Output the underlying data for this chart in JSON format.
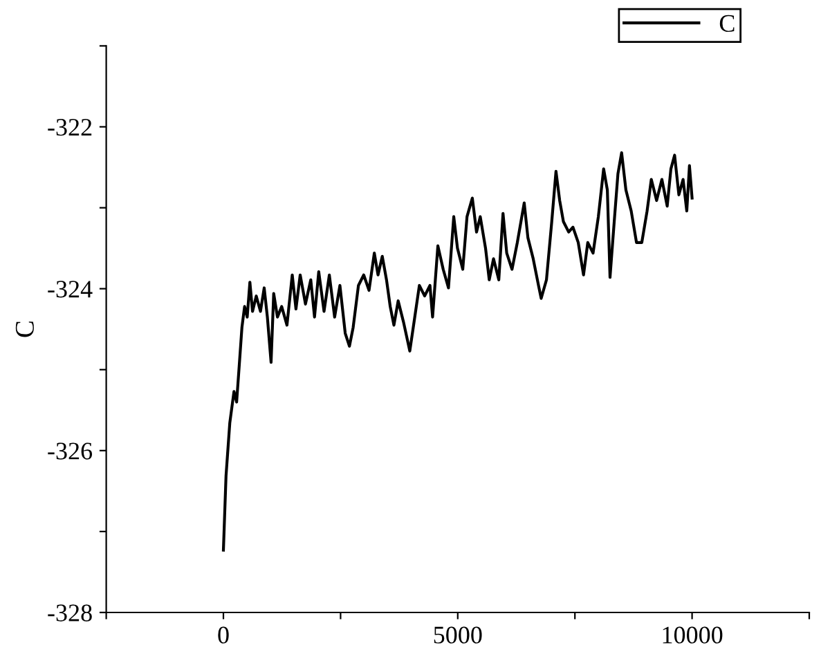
{
  "chart_data": {
    "type": "line",
    "ylabel": "C",
    "legend": "top right",
    "grid": false,
    "marker": "none",
    "line_style": "solid",
    "xlim": [
      -2500,
      12500
    ],
    "xticks": [
      {
        "value": -2500,
        "label": null
      },
      0,
      {
        "value": 2500,
        "label": null
      },
      5000,
      {
        "value": 7500,
        "label": null
      },
      10000,
      {
        "value": 12500,
        "label": null
      }
    ],
    "ylim": [
      -328,
      -321
    ],
    "yticks": [
      -328,
      {
        "value": -327,
        "label": null
      },
      -326,
      {
        "value": -325,
        "label": null
      },
      -324,
      {
        "value": -323,
        "label": null
      },
      -322,
      {
        "value": -321,
        "label": null
      }
    ],
    "series": [
      {
        "name": "C",
        "color": "#000000",
        "x": [
          0,
          56,
          136,
          226,
          282,
          339,
          395,
          452,
          508,
          565,
          621,
          701,
          791,
          870,
          938,
          1017,
          1073,
          1153,
          1243,
          1356,
          1469,
          1548,
          1638,
          1751,
          1864,
          1944,
          2034,
          2147,
          2260,
          2373,
          2486,
          2599,
          2689,
          2768,
          2881,
          2994,
          3107,
          3220,
          3299,
          3390,
          3480,
          3559,
          3638,
          3729,
          3842,
          3977,
          4068,
          4181,
          4294,
          4407,
          4463,
          4576,
          4689,
          4802,
          4915,
          4994,
          5107,
          5198,
          5311,
          5401,
          5480,
          5593,
          5672,
          5763,
          5876,
          5966,
          6045,
          6158,
          6271,
          6418,
          6497,
          6610,
          6723,
          6780,
          6893,
          7006,
          7096,
          7175,
          7254,
          7367,
          7458,
          7571,
          7684,
          7774,
          7887,
          8000,
          8113,
          8192,
          8249,
          8339,
          8418,
          8497,
          8588,
          8701,
          8814,
          8927,
          9040,
          9130,
          9243,
          9356,
          9469,
          9548,
          9627,
          9718,
          9808,
          9887,
          9944,
          10000
        ],
        "values": [
          -327.23,
          -326.31,
          -325.66,
          -325.27,
          -325.4,
          -324.94,
          -324.48,
          -324.22,
          -324.35,
          -323.92,
          -324.28,
          -324.09,
          -324.28,
          -323.99,
          -324.35,
          -324.91,
          -324.06,
          -324.35,
          -324.22,
          -324.45,
          -323.83,
          -324.25,
          -323.83,
          -324.19,
          -323.89,
          -324.35,
          -323.79,
          -324.28,
          -323.83,
          -324.35,
          -323.96,
          -324.55,
          -324.71,
          -324.48,
          -323.96,
          -323.83,
          -324.02,
          -323.56,
          -323.83,
          -323.6,
          -323.89,
          -324.22,
          -324.45,
          -324.15,
          -324.41,
          -324.77,
          -324.41,
          -323.96,
          -324.09,
          -323.96,
          -324.35,
          -323.47,
          -323.76,
          -323.99,
          -323.11,
          -323.5,
          -323.76,
          -323.11,
          -322.88,
          -323.3,
          -323.11,
          -323.5,
          -323.89,
          -323.63,
          -323.89,
          -323.07,
          -323.56,
          -323.76,
          -323.43,
          -322.94,
          -323.37,
          -323.63,
          -323.96,
          -324.12,
          -323.89,
          -323.17,
          -322.55,
          -322.91,
          -323.17,
          -323.3,
          -323.24,
          -323.43,
          -323.83,
          -323.43,
          -323.56,
          -323.11,
          -322.52,
          -322.78,
          -323.86,
          -323.17,
          -322.58,
          -322.32,
          -322.78,
          -323.04,
          -323.43,
          -323.43,
          -323.04,
          -322.65,
          -322.91,
          -322.65,
          -322.98,
          -322.52,
          -322.35,
          -322.84,
          -322.65,
          -323.04,
          -322.48,
          -322.88
        ]
      }
    ]
  }
}
